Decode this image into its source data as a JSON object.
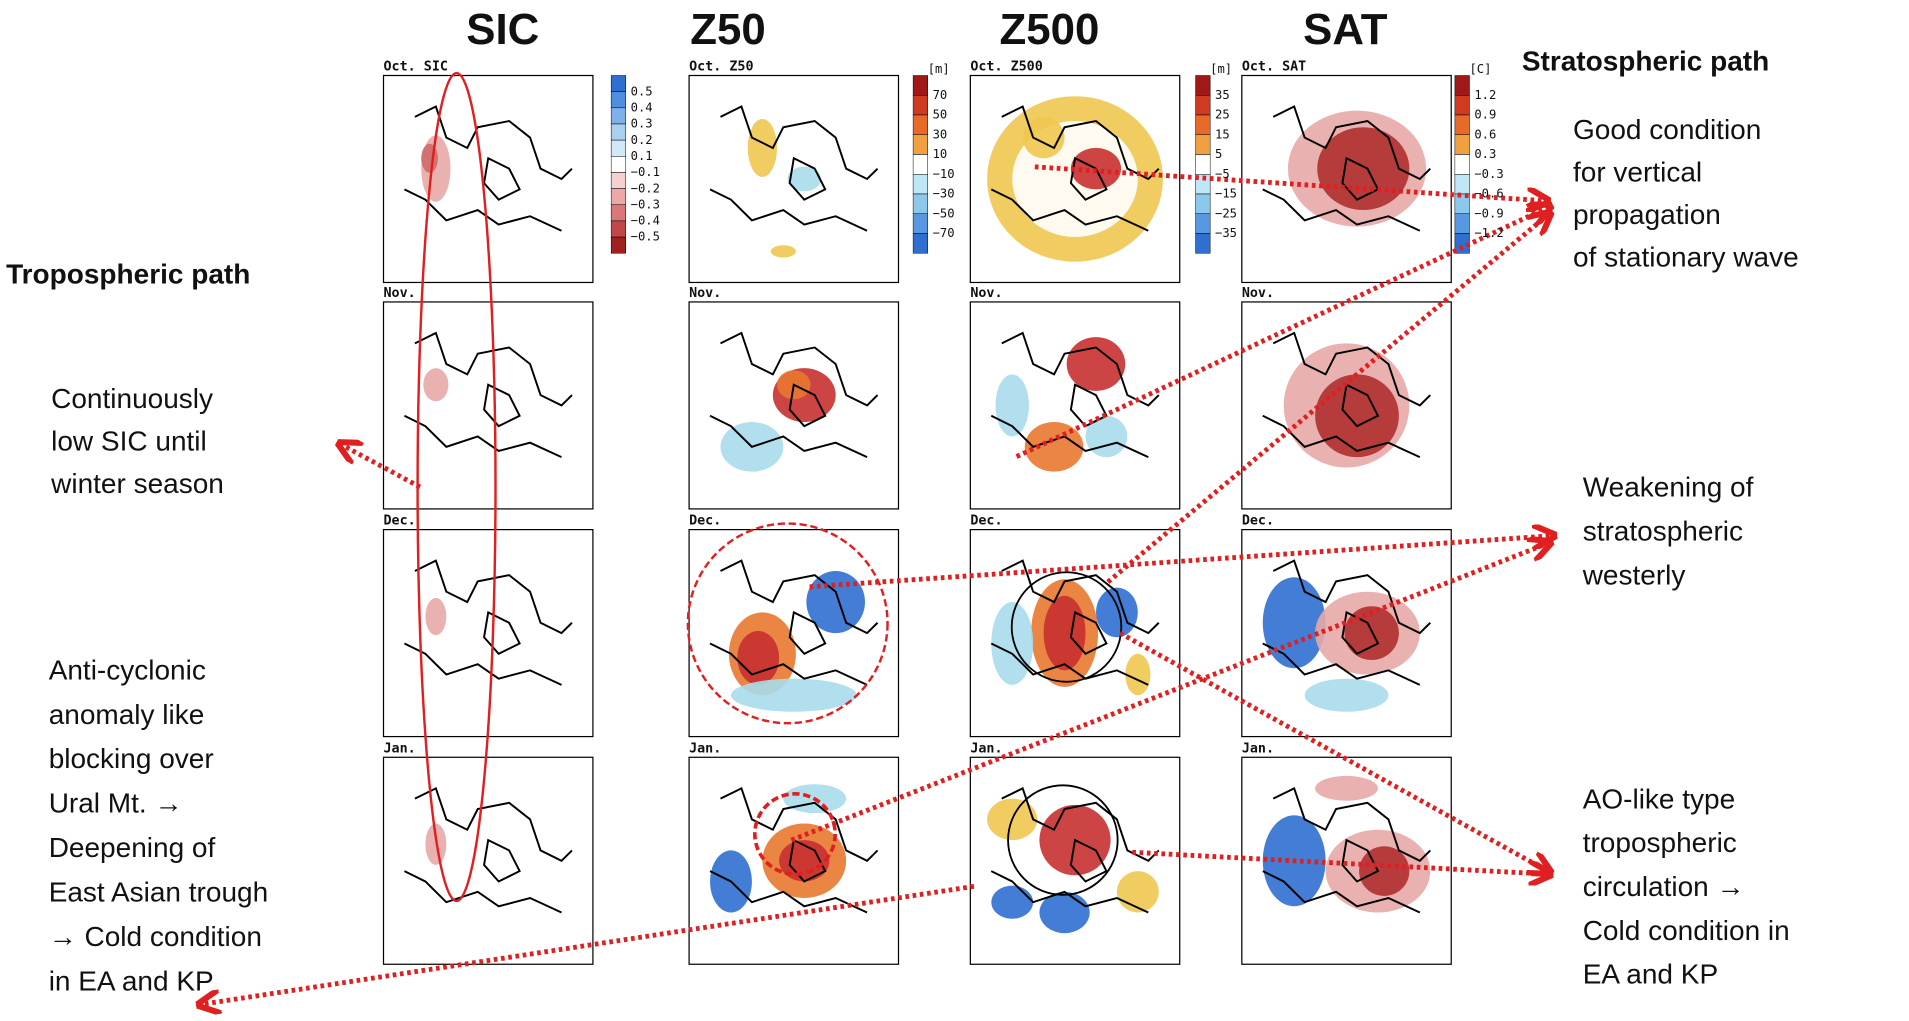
{
  "column_headers": [
    "SIC",
    "Z50",
    "Z500",
    "SAT"
  ],
  "panels": [
    [
      "Oct. SIC",
      "Oct. Z50",
      "Oct. Z500",
      "Oct. SAT"
    ],
    [
      "Nov.",
      "Nov.",
      "Nov.",
      "Nov."
    ],
    [
      "Dec.",
      "Dec.",
      "Dec.",
      "Dec."
    ],
    [
      "Jan.",
      "Jan.",
      "Jan.",
      "Jan."
    ]
  ],
  "colorbars": [
    {
      "labels": [
        "0.5",
        "0.4",
        "0.3",
        "0.2",
        "0.1",
        "−0.1",
        "−0.2",
        "−0.3",
        "−0.4",
        "−0.5"
      ]
    },
    {
      "unit": "[m]",
      "labels": [
        "70",
        "50",
        "30",
        "10",
        "−10",
        "−30",
        "−50",
        "−70"
      ]
    },
    {
      "unit": "[m]",
      "labels": [
        "35",
        "25",
        "15",
        "5",
        "−5",
        "−15",
        "−25",
        "−35"
      ]
    },
    {
      "unit": "[C]",
      "labels": [
        "1.2",
        "0.9",
        "0.6",
        "0.3",
        "−0.3",
        "−0.6",
        "−0.9",
        "−1.2"
      ]
    }
  ],
  "annotations": {
    "stratospheric_path": "Stratospheric path",
    "tropospheric_path": "Tropospheric path",
    "good_condition": {
      "lines": [
        "Good condition",
        "for vertical",
        "propagation",
        "of stationary wave"
      ]
    },
    "low_sic": {
      "lines": [
        "Continuously",
        "low SIC until",
        "winter season"
      ]
    },
    "weakening": {
      "lines": [
        "Weakening of",
        "stratospheric",
        "westerly"
      ]
    },
    "anticyclonic": {
      "lines": [
        "Anti-cyclonic",
        "anomaly like",
        "blocking over",
        "Ural Mt. →",
        "Deepening of",
        "East Asian trough",
        "→ Cold condition",
        "in EA and KP"
      ]
    },
    "ao_like": {
      "lines": [
        "AO-like type",
        "tropospheric",
        "circulation →",
        "Cold condition in",
        "EA and KP"
      ]
    }
  }
}
